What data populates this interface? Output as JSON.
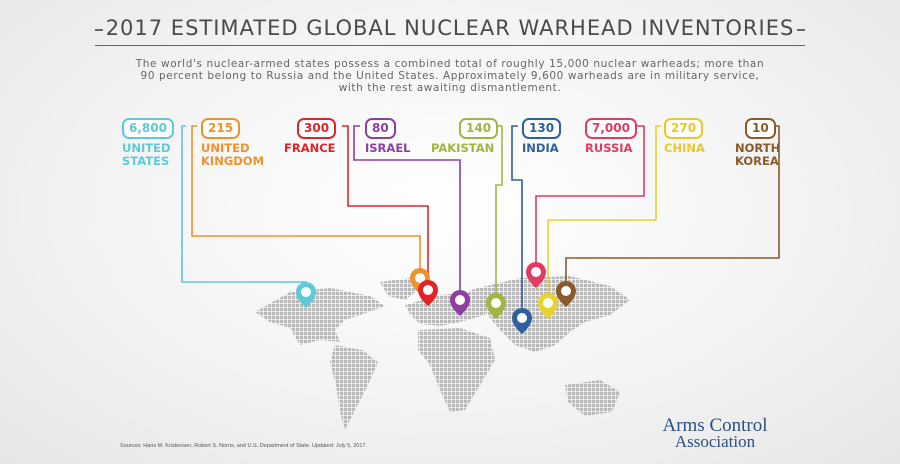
{
  "title": "2017 ESTIMATED GLOBAL NUCLEAR WARHEAD INVENTORIES",
  "subtitle": "The world's nuclear-armed states possess a combined total of roughly 15,000 nuclear warheads; more than 90 percent belong to Russia and the United States. Approximately 9,600 warheads are in military service, with the rest awaiting dismantlement.",
  "countries": [
    {
      "name": "UNITED\nSTATES",
      "warheads": "6,800",
      "color": "#5ecad6"
    },
    {
      "name": "UNITED\nKINGDOM",
      "warheads": "215",
      "color": "#f0922c"
    },
    {
      "name": "FRANCE",
      "warheads": "300",
      "color": "#e0252a"
    },
    {
      "name": "ISRAEL",
      "warheads": "80",
      "color": "#8c3fa0"
    },
    {
      "name": "PAKISTAN",
      "warheads": "140",
      "color": "#a0b640"
    },
    {
      "name": "INDIA",
      "warheads": "130",
      "color": "#2f5f9e"
    },
    {
      "name": "RUSSIA",
      "warheads": "7,000",
      "color": "#e23a63"
    },
    {
      "name": "CHINA",
      "warheads": "270",
      "color": "#e8d42c"
    },
    {
      "name": "NORTH\nKOREA",
      "warheads": "10",
      "color": "#8a5a2a"
    }
  ],
  "sources": "Sources: Hans M. Kristensen, Robert S. Norris, and U.S. Department of State. Updated: July 5, 2017.",
  "logo": {
    "line1": "Arms Control",
    "line2": "Association"
  }
}
